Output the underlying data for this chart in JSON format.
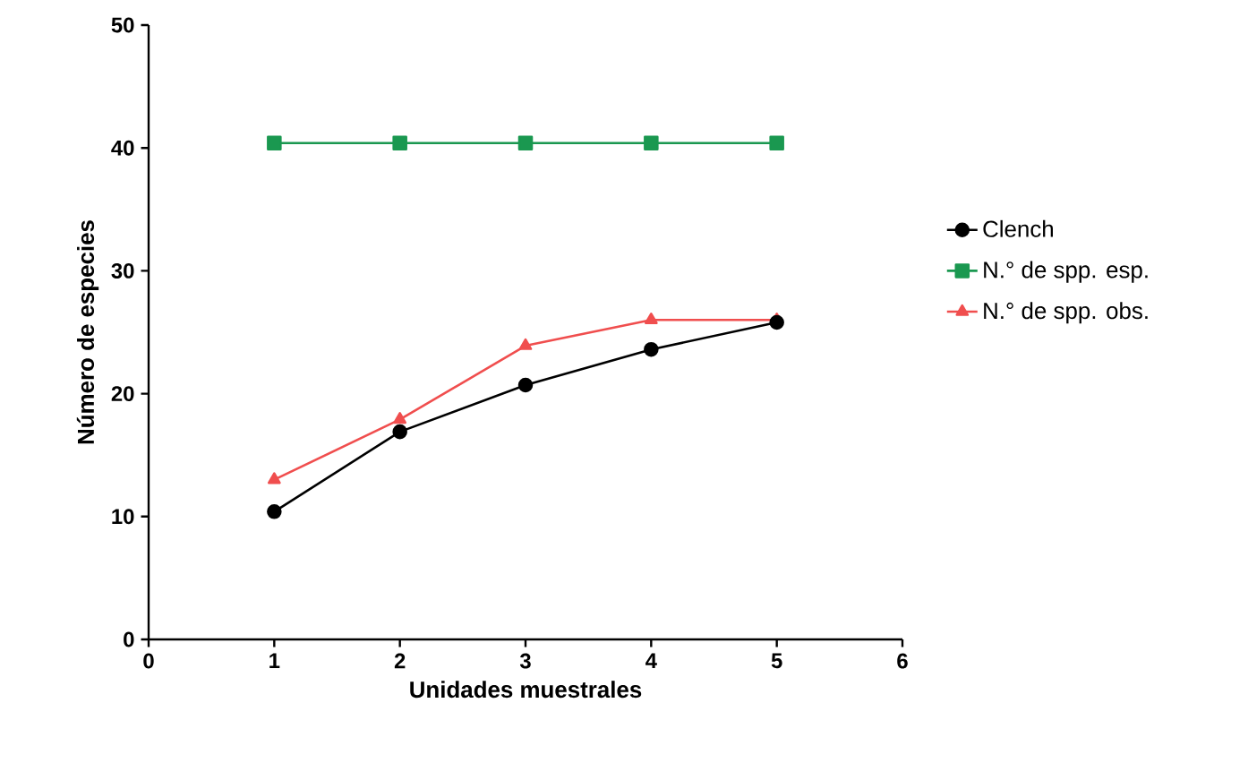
{
  "chart_data": {
    "type": "line",
    "xlabel": "Unidades muestrales",
    "ylabel": "Número de especies",
    "x": [
      1,
      2,
      3,
      4,
      5
    ],
    "series": [
      {
        "name": "Clench",
        "color": "#000000",
        "marker": "circle",
        "values": [
          10.4,
          16.9,
          20.7,
          23.6,
          25.8
        ]
      },
      {
        "name": "N.° de spp. esp.",
        "color": "#1a9850",
        "marker": "square",
        "values": [
          40.4,
          40.4,
          40.4,
          40.4,
          40.4
        ]
      },
      {
        "name": "N.° de spp. obs.",
        "color": "#f04e4e",
        "marker": "triangle",
        "values": [
          13,
          17.9,
          23.9,
          26,
          26
        ]
      }
    ],
    "xlim": [
      0,
      6
    ],
    "xticks": [
      0,
      1,
      2,
      3,
      4,
      5,
      6
    ],
    "ylim": [
      0,
      50
    ],
    "yticks": [
      0,
      10,
      20,
      30,
      40,
      50
    ],
    "legend": "right",
    "grid": false
  }
}
